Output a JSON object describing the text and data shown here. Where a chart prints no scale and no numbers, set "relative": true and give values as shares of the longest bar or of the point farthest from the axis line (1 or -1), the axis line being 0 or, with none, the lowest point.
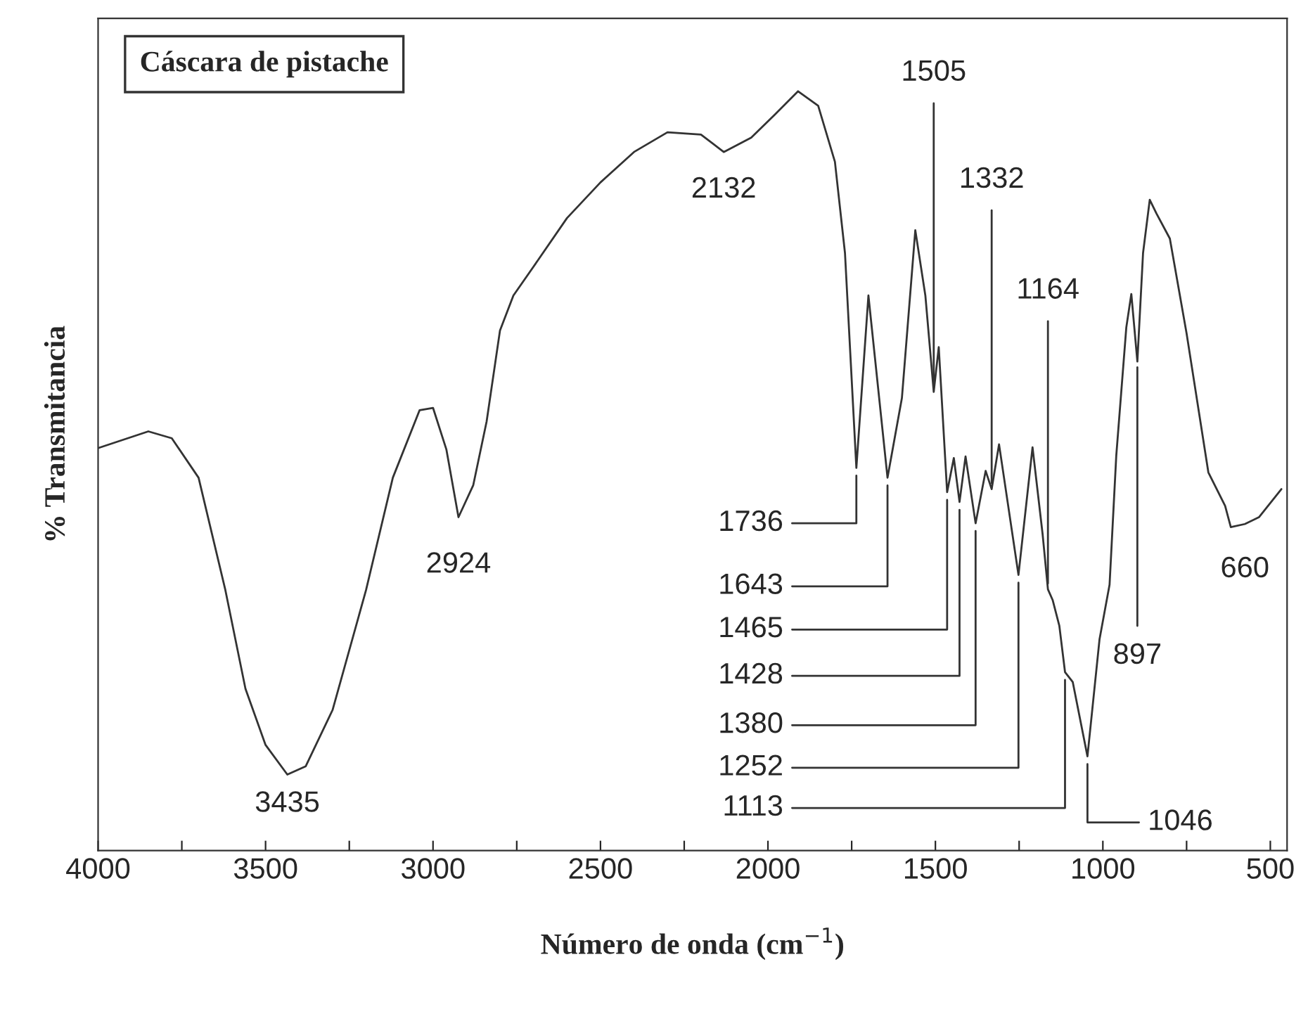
{
  "chart_data": {
    "type": "line",
    "title": "Cáscara de pistache",
    "xlabel": "Número de onda (cm$^{−1}$)",
    "ylabel": "% Transmitancia",
    "relative": true,
    "x": [
      4000,
      3850,
      3780,
      3700,
      3620,
      3560,
      3500,
      3435,
      3380,
      3300,
      3200,
      3120,
      3040,
      3000,
      2960,
      2924,
      2880,
      2840,
      2800,
      2760,
      2700,
      2600,
      2500,
      2400,
      2300,
      2200,
      2132,
      2050,
      1980,
      1910,
      1850,
      1800,
      1770,
      1736,
      1700,
      1643,
      1600,
      1560,
      1530,
      1505,
      1490,
      1465,
      1445,
      1428,
      1410,
      1380,
      1350,
      1332,
      1310,
      1252,
      1210,
      1180,
      1164,
      1150,
      1130,
      1113,
      1090,
      1046,
      1010,
      980,
      960,
      930,
      915,
      897,
      880,
      860,
      840,
      800,
      750,
      685,
      635,
      618,
      576,
      534,
      467
    ],
    "series": [
      {
        "color": "#333333",
        "values": [
          0.53,
          0.552,
          0.543,
          0.491,
          0.343,
          0.213,
          0.139,
          0.1,
          0.111,
          0.185,
          0.343,
          0.491,
          0.58,
          0.583,
          0.528,
          0.439,
          0.481,
          0.565,
          0.685,
          0.731,
          0.769,
          0.833,
          0.88,
          0.92,
          0.946,
          0.943,
          0.92,
          0.939,
          0.969,
          1.0,
          0.981,
          0.907,
          0.787,
          0.504,
          0.731,
          0.491,
          0.596,
          0.817,
          0.731,
          0.604,
          0.663,
          0.472,
          0.517,
          0.459,
          0.519,
          0.431,
          0.5,
          0.476,
          0.535,
          0.363,
          0.531,
          0.417,
          0.344,
          0.33,
          0.296,
          0.235,
          0.222,
          0.124,
          0.278,
          0.35,
          0.52,
          0.689,
          0.733,
          0.644,
          0.787,
          0.857,
          0.839,
          0.806,
          0.681,
          0.498,
          0.454,
          0.426,
          0.43,
          0.439,
          0.476
        ]
      }
    ],
    "xlim": [
      4000,
      450
    ],
    "xticks": [
      4000,
      {
        "value": 3750,
        "label": null
      },
      3500,
      {
        "value": 3250,
        "label": null
      },
      3000,
      {
        "value": 2750,
        "label": null
      },
      2500,
      {
        "value": 2250,
        "label": null
      },
      2000,
      {
        "value": 1750,
        "label": null
      },
      1500,
      {
        "value": 1250,
        "label": null
      },
      1000,
      {
        "value": 750,
        "label": null
      },
      500
    ],
    "grid": false,
    "legend": false,
    "marker": "none",
    "line_style": "solid",
    "annotations": [
      {
        "text": "3435",
        "x": 3435,
        "y": 0.1
      },
      {
        "text": "2924",
        "x": 2924,
        "y": 0.439
      },
      {
        "text": "2132",
        "x": 2132,
        "y": 0.92
      },
      {
        "text": "1505",
        "x": 1505,
        "y": 0.604
      },
      {
        "text": "1332",
        "x": 1332,
        "y": 0.476
      },
      {
        "text": "1164",
        "x": 1164,
        "y": 0.344
      },
      {
        "text": "1736",
        "x": 1736,
        "y": 0.504
      },
      {
        "text": "1643",
        "x": 1643,
        "y": 0.491
      },
      {
        "text": "1465",
        "x": 1465,
        "y": 0.472
      },
      {
        "text": "1428",
        "x": 1428,
        "y": 0.459
      },
      {
        "text": "1380",
        "x": 1380,
        "y": 0.431
      },
      {
        "text": "1252",
        "x": 1252,
        "y": 0.363
      },
      {
        "text": "1113",
        "x": 1113,
        "y": 0.235
      },
      {
        "text": "1046",
        "x": 1046,
        "y": 0.124
      },
      {
        "text": "897",
        "x": 897,
        "y": 0.644
      },
      {
        "text": "660",
        "x": 576,
        "y": 0.43
      }
    ]
  }
}
